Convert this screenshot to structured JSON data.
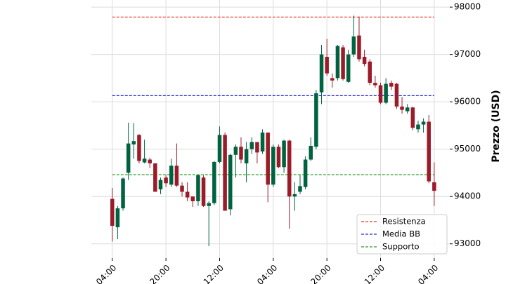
{
  "chart_data": {
    "type": "candlestick",
    "y_label": "Prezzo (USD)",
    "x": [
      0,
      1,
      2,
      3,
      4,
      5,
      6,
      7,
      8,
      9,
      10,
      11,
      12,
      13,
      14,
      15,
      16,
      17,
      18,
      19,
      20,
      21,
      22,
      23,
      24,
      25,
      26,
      27,
      28,
      29,
      30,
      31,
      32,
      33,
      34,
      35,
      36,
      37,
      38,
      39,
      40,
      41,
      42,
      43,
      44,
      45,
      46,
      47,
      48,
      49,
      50,
      51,
      52,
      53,
      54,
      55,
      56,
      57,
      58,
      59,
      60
    ],
    "open": [
      93950,
      93350,
      93750,
      94500,
      95100,
      95300,
      94720,
      94780,
      94700,
      94150,
      94400,
      94250,
      94650,
      94230,
      94100,
      94000,
      93900,
      94400,
      93800,
      93860,
      94730,
      95300,
      93730,
      94880,
      95050,
      94700,
      95000,
      95150,
      94950,
      95350,
      94250,
      95050,
      94620,
      95180,
      94000,
      94100,
      94200,
      94780,
      95050,
      96200,
      96950,
      96500,
      96500,
      97150,
      96420,
      97000,
      97400,
      96950,
      96850,
      96400,
      96350,
      95980,
      96400,
      96380,
      95900,
      95800,
      95880,
      95420,
      95520,
      95580,
      94300
    ],
    "high": [
      94180,
      93800,
      94400,
      95560,
      95550,
      95320,
      95200,
      94820,
      94700,
      94400,
      94450,
      94800,
      95120,
      94300,
      94300,
      94000,
      94450,
      94450,
      93900,
      94750,
      95480,
      95350,
      94900,
      95100,
      95250,
      95150,
      95250,
      95150,
      95420,
      95350,
      95100,
      95100,
      95200,
      95200,
      94300,
      94450,
      94850,
      95250,
      96250,
      97200,
      97330,
      96600,
      97200,
      97200,
      97100,
      97820,
      97800,
      97100,
      96900,
      96550,
      96400,
      96500,
      96450,
      96400,
      96100,
      95950,
      95900,
      95600,
      95650,
      95720,
      94720
    ],
    "low": [
      93050,
      93100,
      93700,
      94350,
      94800,
      94700,
      94700,
      94600,
      94100,
      94050,
      94200,
      94200,
      94200,
      94000,
      93900,
      93780,
      93800,
      93780,
      92950,
      93820,
      94700,
      93700,
      93600,
      94400,
      94700,
      94300,
      94900,
      94700,
      94900,
      93880,
      94200,
      94600,
      94500,
      93320,
      93700,
      94050,
      94150,
      94750,
      95000,
      95950,
      96550,
      96300,
      96450,
      96450,
      96400,
      96950,
      96850,
      96750,
      96350,
      96300,
      95950,
      95950,
      96250,
      95850,
      95750,
      95750,
      95400,
      95350,
      95350,
      94280,
      93800
    ],
    "close": [
      93380,
      93750,
      94380,
      95120,
      95170,
      94750,
      94800,
      94700,
      94100,
      94350,
      94280,
      94650,
      94230,
      94100,
      93980,
      93900,
      94450,
      93800,
      93860,
      94730,
      95300,
      93700,
      94880,
      95050,
      94780,
      95000,
      95150,
      94930,
      95350,
      94250,
      95050,
      94620,
      95180,
      94000,
      94050,
      94220,
      94780,
      95070,
      96180,
      97000,
      96600,
      96450,
      97180,
      96480,
      97000,
      97380,
      96900,
      96800,
      96400,
      96350,
      95980,
      96380,
      96320,
      95900,
      95830,
      95880,
      95450,
      95520,
      95580,
      94320,
      94120
    ],
    "up_color": "#006340",
    "down_color": "#9b1c28",
    "hlines": [
      {
        "name": "Resistenza",
        "value": 97790,
        "color": "#e8322e"
      },
      {
        "name": "Media BB",
        "value": 96130,
        "color": "#2b2bd8"
      },
      {
        "name": "Supporto",
        "value": 94460,
        "color": "#2a9a2a"
      }
    ],
    "xlim": [
      -3.9,
      62.9
    ],
    "xticks": [
      {
        "value": 0,
        "label": "04:00"
      },
      {
        "value": 10,
        "label": "20:00"
      },
      {
        "value": 20,
        "label": "12:00"
      },
      {
        "value": 30,
        "label": "04:00"
      },
      {
        "value": 40,
        "label": "20:00"
      },
      {
        "value": 50,
        "label": "12:00"
      },
      {
        "value": 60,
        "label": "04:00"
      }
    ],
    "ylim": [
      92700,
      98150
    ],
    "yticks": [
      93000,
      94000,
      95000,
      96000,
      97000,
      98000
    ],
    "grid": true,
    "legend": "lower right"
  }
}
